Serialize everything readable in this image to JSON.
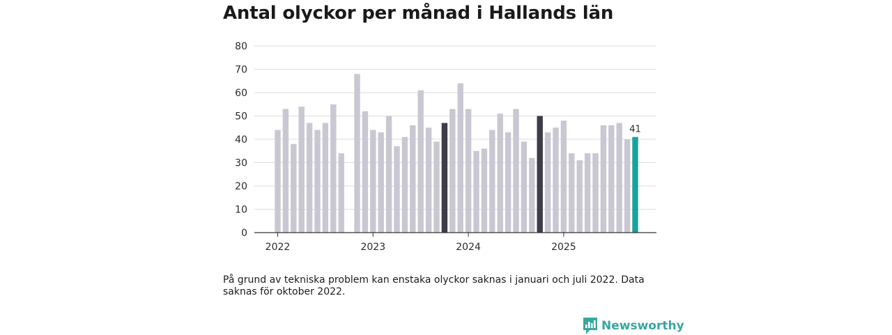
{
  "title": "Antal olyckor per månad i Hallands län",
  "note": "På grund av tekniska problem kan enstaka olyckor saknas i januari och juli 2022. Data saknas för oktober 2022.",
  "brand": {
    "name": "Newsworthy",
    "icon": "newsworthy-logo-icon",
    "color": "#3aa6a0"
  },
  "chart_data": {
    "type": "bar",
    "title": "Antal olyckor per månad i Hallands län",
    "xlabel": "",
    "ylabel": "",
    "ylim": [
      0,
      80
    ],
    "yticks": [
      0,
      10,
      20,
      30,
      40,
      50,
      60,
      70,
      80
    ],
    "grid": true,
    "legend": "none",
    "x_tick_labels": [
      {
        "label": "2022",
        "index": 0
      },
      {
        "label": "2023",
        "index": 12
      },
      {
        "label": "2024",
        "index": 24
      },
      {
        "label": "2025",
        "index": 36
      }
    ],
    "colors": {
      "default": "#c9c8d2",
      "october": "#3d3c48",
      "latest": "#17a39b",
      "grid": "#dcdcdc",
      "axis": "#333333"
    },
    "categories": [
      "2022-01",
      "2022-02",
      "2022-03",
      "2022-04",
      "2022-05",
      "2022-06",
      "2022-07",
      "2022-08",
      "2022-09",
      "2022-10",
      "2022-11",
      "2022-12",
      "2023-01",
      "2023-02",
      "2023-03",
      "2023-04",
      "2023-05",
      "2023-06",
      "2023-07",
      "2023-08",
      "2023-09",
      "2023-10",
      "2023-11",
      "2023-12",
      "2024-01",
      "2024-02",
      "2024-03",
      "2024-04",
      "2024-05",
      "2024-06",
      "2024-07",
      "2024-08",
      "2024-09",
      "2024-10",
      "2024-11",
      "2024-12",
      "2025-01",
      "2025-02",
      "2025-03",
      "2025-04",
      "2025-05",
      "2025-06",
      "2025-07",
      "2025-08",
      "2025-09",
      "2025-10"
    ],
    "values": [
      44,
      53,
      38,
      54,
      47,
      44,
      47,
      55,
      34,
      null,
      68,
      52,
      44,
      43,
      50,
      37,
      41,
      46,
      61,
      45,
      39,
      47,
      53,
      64,
      53,
      35,
      36,
      44,
      51,
      43,
      53,
      39,
      32,
      50,
      43,
      45,
      48,
      34,
      31,
      34,
      34,
      46,
      46,
      47,
      40,
      41
    ],
    "highlight": {
      "2023-10": "october",
      "2024-10": "october",
      "2025-10": "latest"
    },
    "data_labels": [
      {
        "index": 45,
        "label": "41"
      }
    ]
  }
}
